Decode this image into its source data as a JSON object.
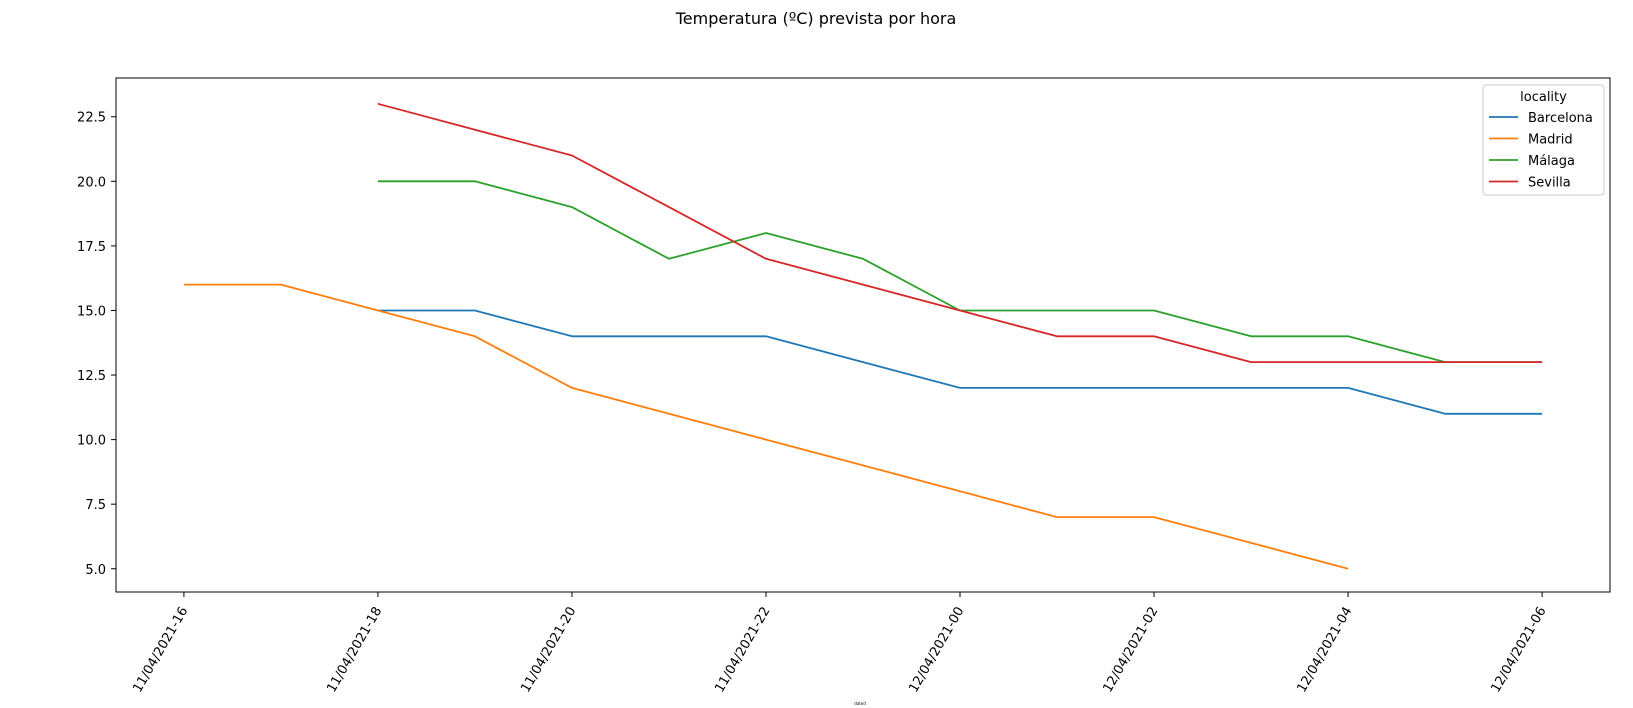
{
  "chart_data": {
    "type": "line",
    "title": "Temperatura (ºC) prevista por hora",
    "xlabel": "dated",
    "ylabel": "",
    "x_ticks": [
      "11/04/2021-16",
      "11/04/2021-18",
      "11/04/2021-20",
      "11/04/2021-22",
      "12/04/2021-00",
      "12/04/2021-02",
      "12/04/2021-04",
      "12/04/2021-06"
    ],
    "y_ticks": [
      "5.0",
      "7.5",
      "10.0",
      "12.5",
      "15.0",
      "17.5",
      "20.0",
      "22.5"
    ],
    "ylim": [
      4.1,
      24.0
    ],
    "xlim": [
      -0.7,
      14.7
    ],
    "grid": false,
    "legend": {
      "title": "locality",
      "placement": "top-right"
    },
    "x": [
      "11/04/2021-16",
      "11/04/2021-17",
      "11/04/2021-18",
      "11/04/2021-19",
      "11/04/2021-20",
      "11/04/2021-21",
      "11/04/2021-22",
      "11/04/2021-23",
      "12/04/2021-00",
      "12/04/2021-01",
      "12/04/2021-02",
      "12/04/2021-03",
      "12/04/2021-04",
      "12/04/2021-05",
      "12/04/2021-06"
    ],
    "series": [
      {
        "name": "Barcelona",
        "color": "#1f77b4",
        "values": [
          null,
          null,
          15,
          15,
          14,
          14,
          14,
          13,
          12,
          12,
          12,
          12,
          12,
          11,
          11
        ]
      },
      {
        "name": "Madrid",
        "color": "#ff7f0e",
        "values": [
          16,
          16,
          15,
          14,
          12,
          11,
          10,
          9,
          8,
          7,
          7,
          6,
          5,
          null,
          null
        ]
      },
      {
        "name": "Málaga",
        "color": "#2ca02c",
        "values": [
          null,
          null,
          20,
          20,
          19,
          17,
          18,
          17,
          15,
          15,
          15,
          14,
          14,
          13,
          13
        ]
      },
      {
        "name": "Sevilla",
        "color": "#d62728",
        "values": [
          null,
          null,
          23,
          22,
          21,
          19,
          17,
          16,
          15,
          14,
          14,
          13,
          13,
          13,
          13
        ]
      }
    ]
  }
}
